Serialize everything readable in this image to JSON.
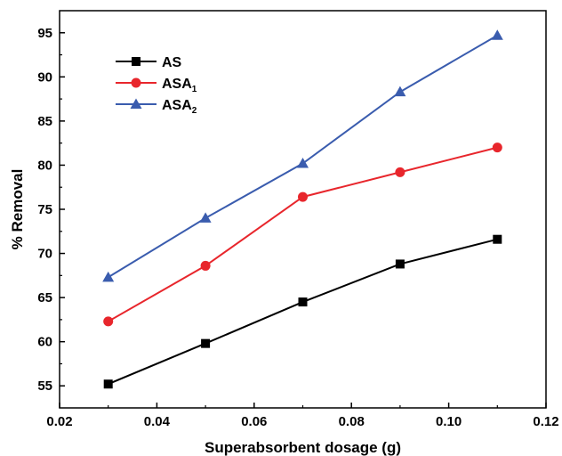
{
  "chart_data": {
    "type": "line",
    "xlabel": "Superabsorbent dosage (g)",
    "ylabel": "% Removal",
    "xlim": [
      0.02,
      0.12
    ],
    "ylim": [
      52.5,
      97.5
    ],
    "x_ticks": [
      "0.02",
      "0.04",
      "0.06",
      "0.08",
      "0.10",
      "0.12"
    ],
    "y_ticks": [
      "55",
      "60",
      "65",
      "70",
      "75",
      "80",
      "85",
      "90",
      "95"
    ],
    "x": [
      0.03,
      0.05,
      0.07,
      0.09,
      0.11
    ],
    "legend_position": "top-left",
    "grid": false,
    "series": [
      {
        "name": "AS",
        "name_base": "AS",
        "name_sub": "",
        "color": "#000000",
        "marker": "square",
        "values": [
          55.2,
          59.8,
          64.5,
          68.8,
          71.6
        ]
      },
      {
        "name": "ASA1",
        "name_base": "ASA",
        "name_sub": "1",
        "color": "#e8262c",
        "marker": "circle",
        "values": [
          62.3,
          68.6,
          76.4,
          79.2,
          82.0
        ]
      },
      {
        "name": "ASA2",
        "name_base": "ASA",
        "name_sub": "2",
        "color": "#3a5cae",
        "marker": "triangle",
        "values": [
          67.3,
          74.0,
          80.2,
          88.3,
          94.7
        ]
      }
    ]
  }
}
